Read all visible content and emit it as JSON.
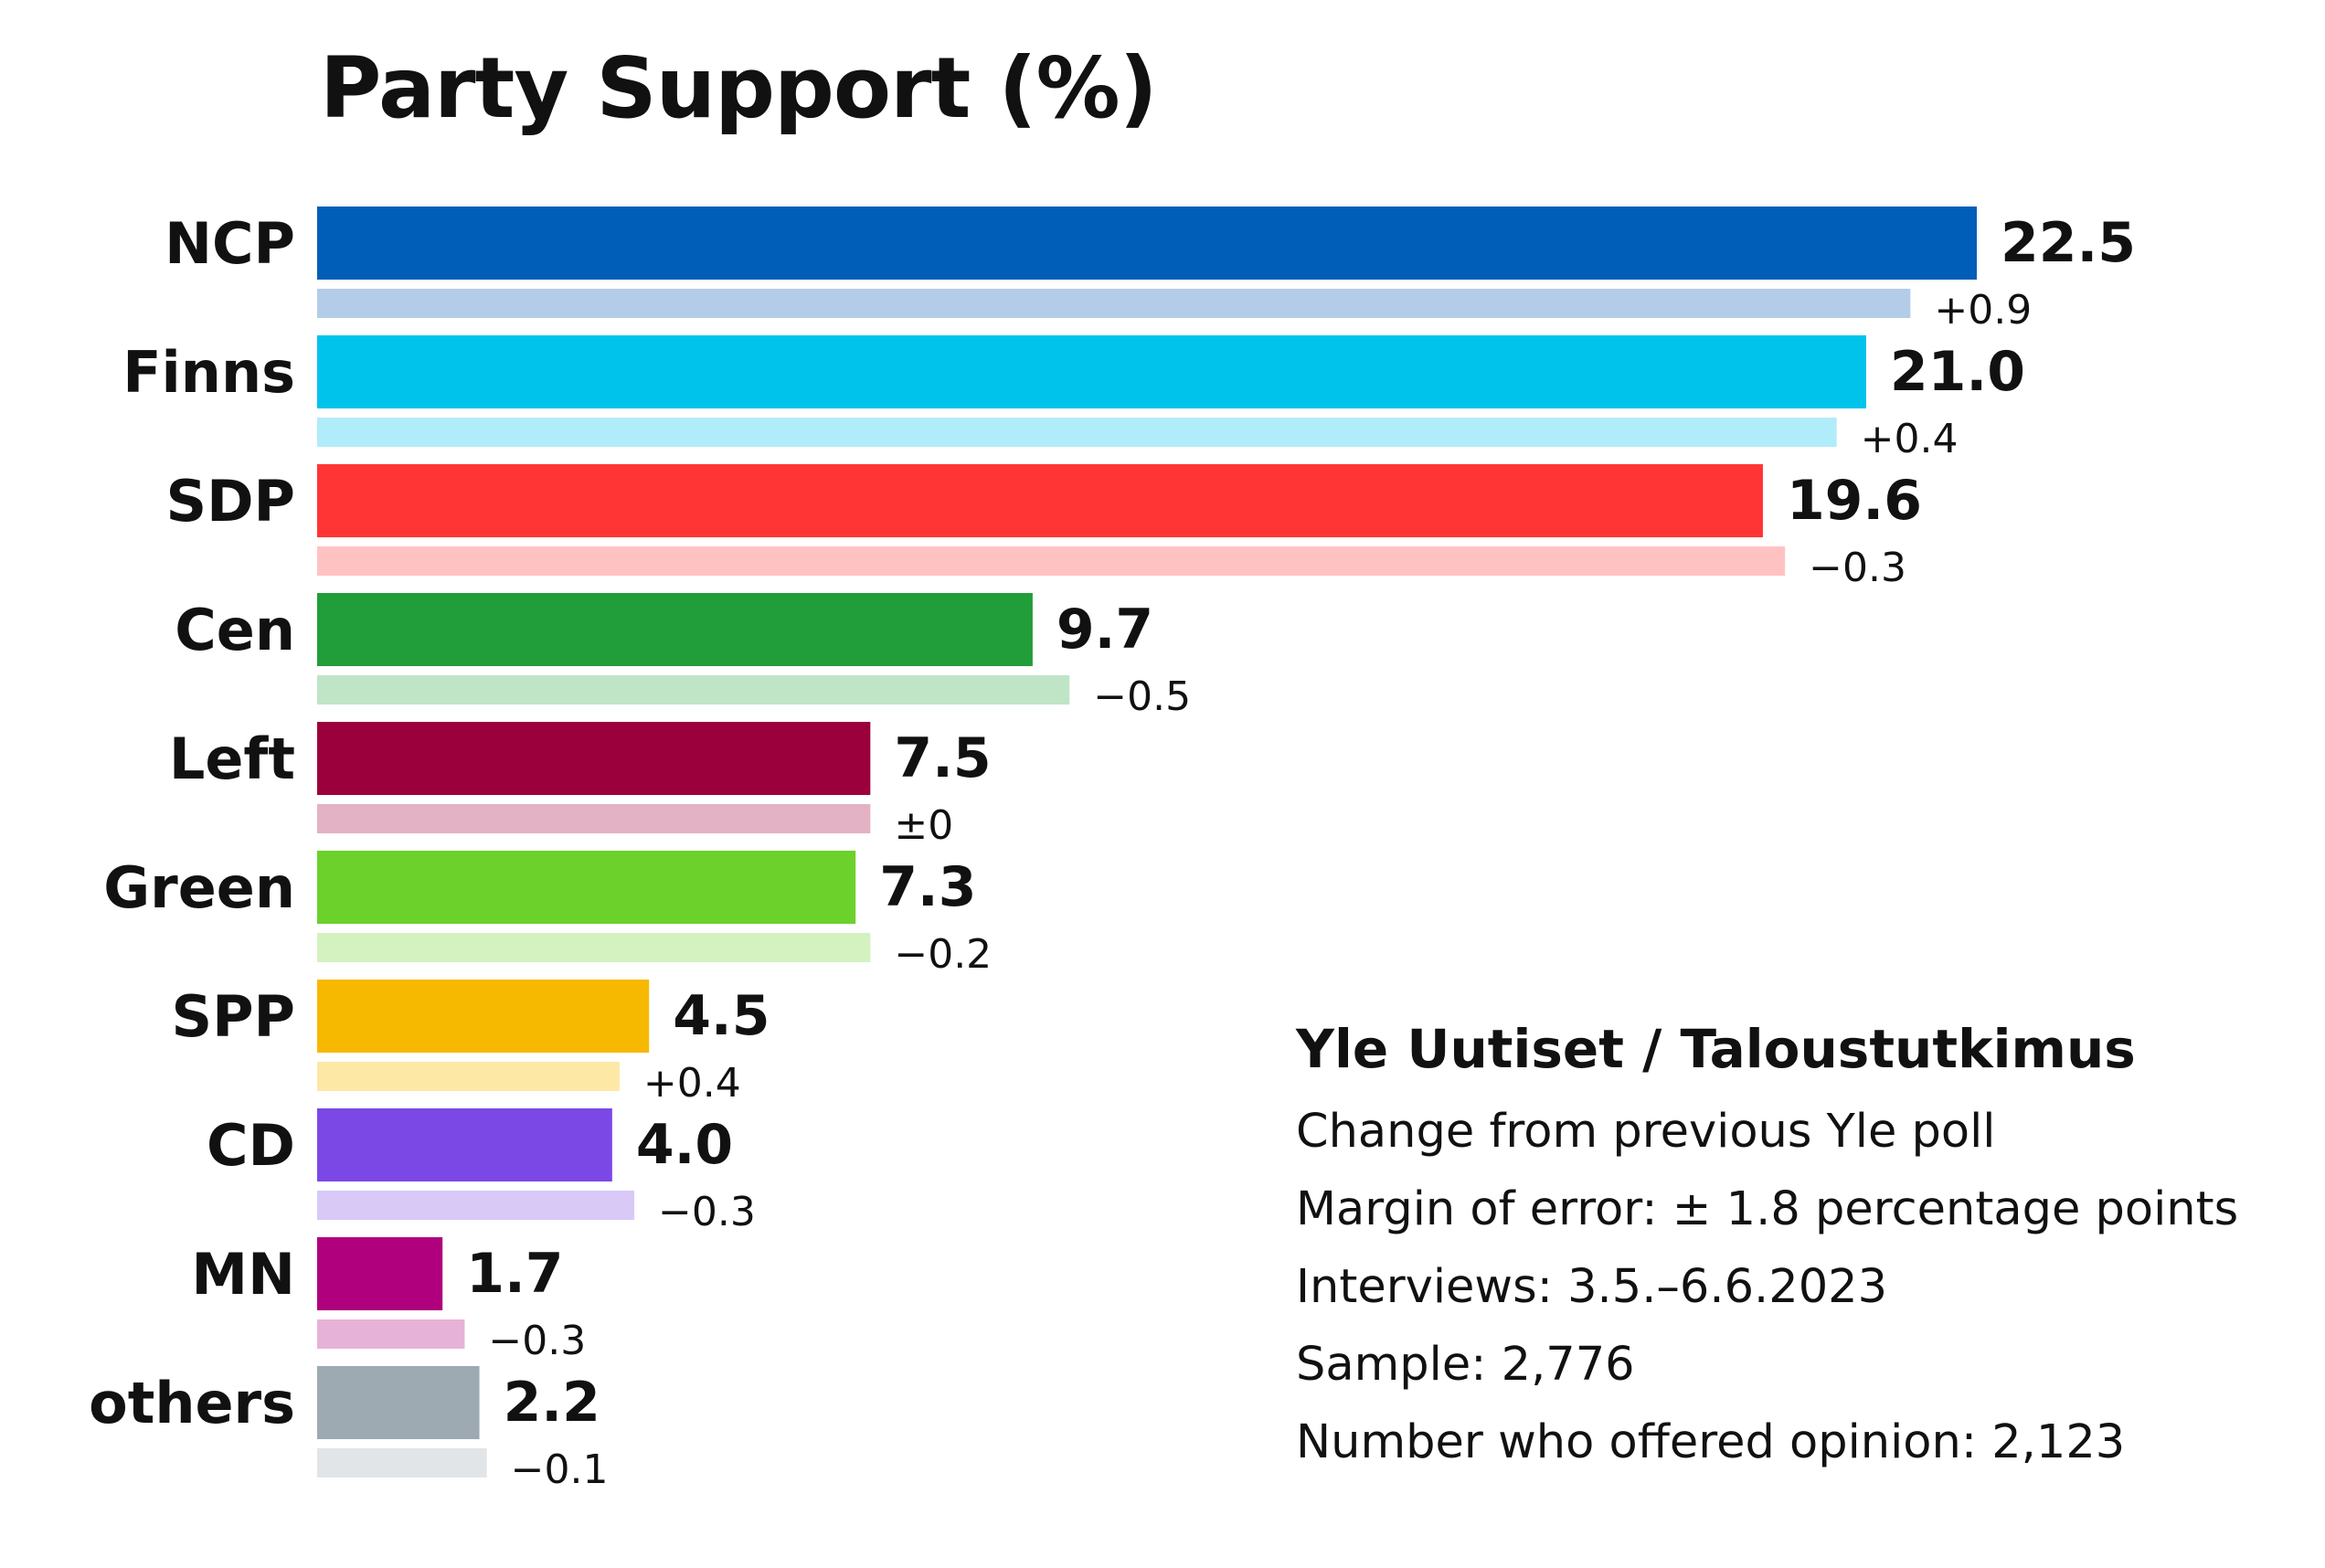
{
  "chart_data": {
    "type": "bar",
    "orientation": "horizontal",
    "title": "Party Support (%)",
    "categories": [
      "NCP",
      "Finns",
      "SDP",
      "Cen",
      "Left",
      "Green",
      "SPP",
      "CD",
      "MN",
      "others"
    ],
    "series": [
      {
        "values": [
          22.5,
          21.0,
          19.6,
          9.7,
          7.5,
          7.3,
          4.5,
          4.0,
          1.7,
          2.2
        ]
      },
      {
        "values": [
          21.6,
          20.6,
          19.9,
          10.2,
          7.5,
          7.5,
          4.1,
          4.3,
          2.0,
          2.3
        ]
      }
    ],
    "value_labels": [
      "22.5",
      "21.0",
      "19.6",
      "9.7",
      "7.5",
      "7.3",
      "4.5",
      "4.0",
      "1.7",
      "2.2"
    ],
    "change_labels": [
      "+0.9",
      "+0.4",
      "−0.3",
      "−0.5",
      "±0",
      "−0.2",
      "+0.4",
      "−0.3",
      "−0.3",
      "−0.1"
    ],
    "colors": [
      "#005eb8",
      "#00c3ec",
      "#ff3434",
      "#219d3a",
      "#9c003c",
      "#6cd12b",
      "#f7b800",
      "#7b48e6",
      "#b0007d",
      "#9eaab2"
    ],
    "prev_colors": [
      "#b3cde9",
      "#b0ecf9",
      "#ffc2c2",
      "#c0e4c6",
      "#e3b2c4",
      "#d3f2c0",
      "#fde8a6",
      "#d8c9f7",
      "#e7b2d7",
      "#e1e5e8"
    ],
    "xlim": [
      0,
      22.5
    ]
  },
  "info": {
    "source": "Yle Uutiset / Taloustutkimus",
    "lines": [
      "Change from previous Yle poll",
      "Margin of error: ± 1.8 percentage points",
      "Interviews: 3.5.–6.6.2023",
      "Sample: 2,776",
      "Number who offered opinion: 2,123"
    ]
  }
}
